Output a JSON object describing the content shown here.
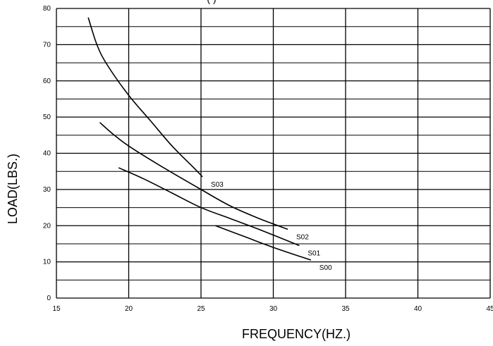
{
  "chart_data": {
    "type": "line",
    "title_fragment": "(       )",
    "xlabel": "FREQUENCY(HZ.)",
    "ylabel": "LOAD(LBS.)",
    "xlim": [
      15,
      45
    ],
    "ylim": [
      0,
      80
    ],
    "x_ticks": [
      "15",
      "20",
      "25",
      "30",
      "35",
      "40",
      "45"
    ],
    "y_ticks": [
      "0",
      "10",
      "20",
      "30",
      "40",
      "50",
      "60",
      "70",
      "80"
    ],
    "grid": true,
    "series": [
      {
        "name": "S03",
        "points": [
          [
            17.2,
            77.5
          ],
          [
            17.8,
            70
          ],
          [
            18.5,
            64.5
          ],
          [
            20,
            56
          ],
          [
            21.5,
            49
          ],
          [
            23,
            42
          ],
          [
            24.5,
            36
          ],
          [
            25.1,
            33.5
          ]
        ]
      },
      {
        "name": "S02",
        "points": [
          [
            18,
            48.5
          ],
          [
            19,
            45
          ],
          [
            20,
            42
          ],
          [
            22,
            37
          ],
          [
            25,
            30
          ],
          [
            27,
            25.5
          ],
          [
            29,
            22
          ],
          [
            31,
            19
          ]
        ]
      },
      {
        "name": "S01",
        "points": [
          [
            19.3,
            36
          ],
          [
            21,
            33
          ],
          [
            23,
            29
          ],
          [
            25,
            25
          ],
          [
            27,
            22
          ],
          [
            29,
            19
          ],
          [
            31.8,
            14.5
          ]
        ]
      },
      {
        "name": "S00",
        "points": [
          [
            26,
            20
          ],
          [
            28,
            17
          ],
          [
            30,
            14
          ],
          [
            32.6,
            10.5
          ]
        ]
      }
    ]
  }
}
